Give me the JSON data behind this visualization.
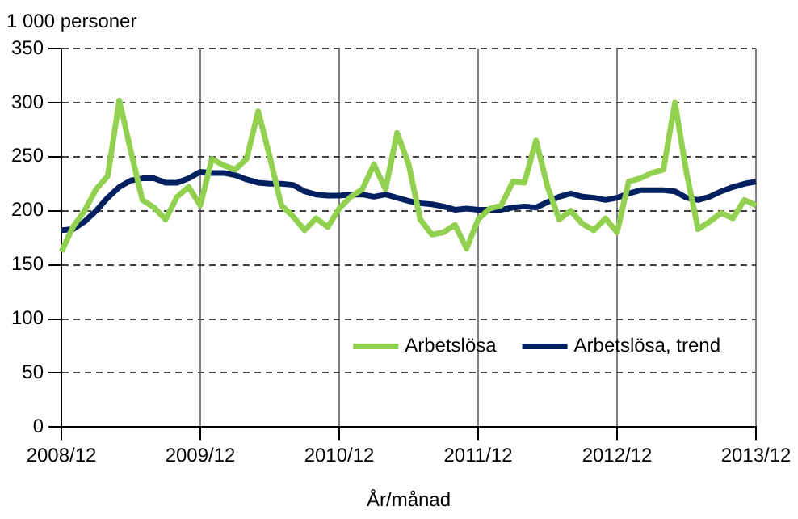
{
  "chart_data": {
    "type": "line",
    "ylabel": "1 000 personer",
    "xlabel": "År/månad",
    "categories": [
      "2008/12",
      null,
      null,
      null,
      null,
      null,
      null,
      null,
      null,
      null,
      null,
      null,
      "2009/12",
      null,
      null,
      null,
      null,
      null,
      null,
      null,
      null,
      null,
      null,
      null,
      "2010/12",
      null,
      null,
      null,
      null,
      null,
      null,
      null,
      null,
      null,
      null,
      null,
      "2011/12",
      null,
      null,
      null,
      null,
      null,
      null,
      null,
      null,
      null,
      null,
      null,
      "2012/12",
      null,
      null,
      null,
      null,
      null,
      null,
      null,
      null,
      null,
      null,
      null,
      "2013/12"
    ],
    "series": [
      {
        "name": "Arbetslösa",
        "color": "#92d050",
        "values": [
          162,
          185,
          200,
          220,
          232,
          302,
          255,
          210,
          203,
          192,
          213,
          222,
          205,
          248,
          242,
          238,
          248,
          292,
          250,
          205,
          195,
          182,
          193,
          185,
          202,
          213,
          220,
          243,
          220,
          272,
          243,
          192,
          178,
          180,
          187,
          165,
          192,
          202,
          205,
          227,
          226,
          265,
          222,
          192,
          200,
          188,
          182,
          193,
          180,
          227,
          230,
          235,
          238,
          300,
          235,
          183,
          190,
          198,
          193,
          210,
          205
        ]
      },
      {
        "name": "Arbetslösa, trend",
        "color": "#002060",
        "values": [
          182,
          183,
          190,
          200,
          212,
          222,
          228,
          230,
          230,
          226,
          226,
          230,
          236,
          235,
          235,
          233,
          229,
          226,
          225,
          225,
          224,
          218,
          215,
          214,
          214,
          215,
          215,
          213,
          215,
          212,
          209,
          207,
          206,
          204,
          201,
          202,
          201,
          201,
          201,
          203,
          204,
          203,
          208,
          213,
          216,
          213,
          212,
          210,
          212,
          216,
          219,
          219,
          219,
          218,
          212,
          210,
          213,
          218,
          222,
          225,
          227
        ]
      }
    ],
    "ylim": [
      0,
      350
    ],
    "yticks": [
      0,
      50,
      100,
      150,
      200,
      250,
      300,
      350
    ],
    "grid": true,
    "legend": "bottom right",
    "line_style": "solid",
    "marker": "none"
  }
}
